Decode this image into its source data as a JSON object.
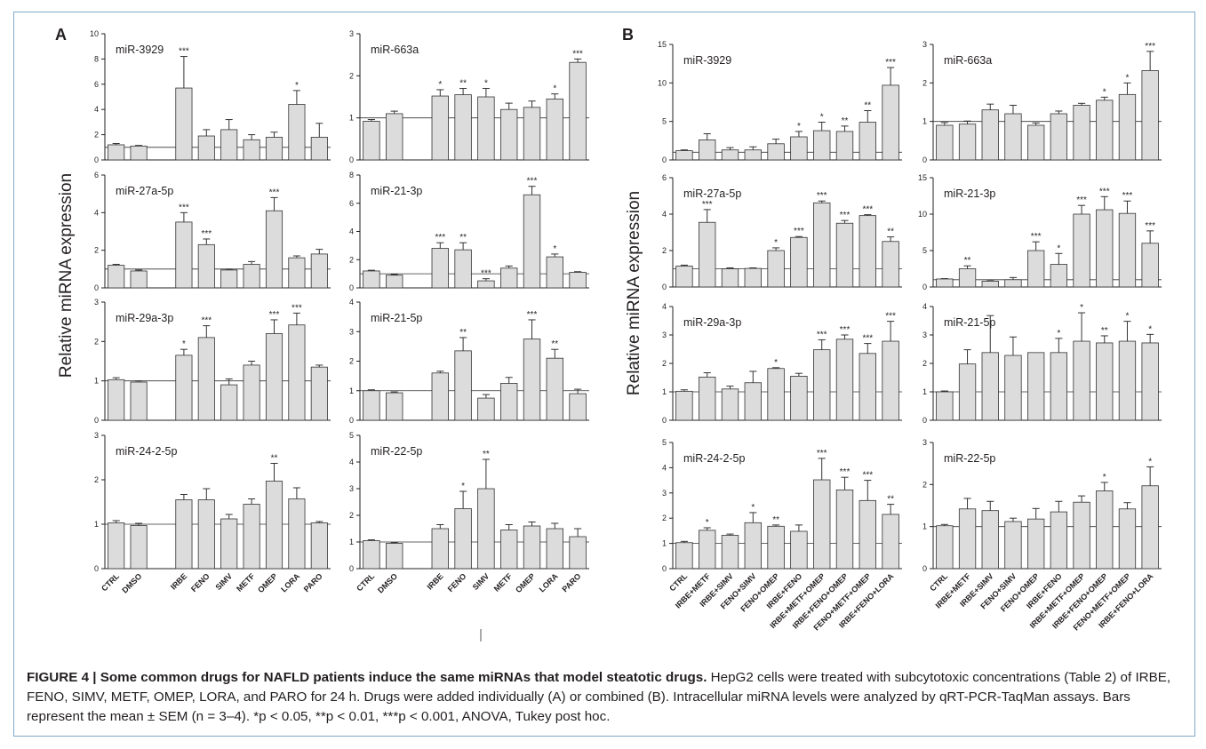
{
  "figure": {
    "ylabel": "Relative miRNA expression",
    "panel_labels": [
      "A",
      "B"
    ]
  },
  "caption": {
    "label": "FIGURE 4 | Some common drugs for NAFLD patients induce the same miRNAs that model steatotic drugs.",
    "text": "HepG2 cells were treated with subcytotoxic concentrations (Table 2) of IRBE, FENO, SIMV, METF, OMEP, LORA, and PARO for 24 h. Drugs were added individually (A) or combined (B). Intracellular miRNA levels were analyzed by qRT-PCR-TaqMan assays. Bars represent the mean ± SEM (n = 3–4). *p < 0.05, **p < 0.01, ***p < 0.001, ANOVA, Tukey post hoc."
  },
  "colors": {
    "bar_fill": "#dcdcdc",
    "bar_stroke": "#333333",
    "frame": "#7fa9c9"
  },
  "chart_data": [
    {
      "type": "bar",
      "panel": "A",
      "title": "miR-3929",
      "categories": [
        "CTRL",
        "DMSO",
        "IRBE",
        "FENO",
        "SIMV",
        "METF",
        "OMEP",
        "LORA",
        "PARO"
      ],
      "values": [
        1.2,
        1.1,
        5.7,
        1.9,
        2.4,
        1.6,
        1.8,
        4.4,
        1.8
      ],
      "errors": [
        0.1,
        0.05,
        2.5,
        0.5,
        0.8,
        0.4,
        0.4,
        1.1,
        1.1
      ],
      "significance": [
        "",
        "",
        "***",
        "",
        "",
        "",
        "",
        "*",
        ""
      ],
      "ylim": [
        0,
        10
      ],
      "yticks": [
        0,
        2,
        4,
        6,
        8,
        10
      ],
      "ref_line": 1
    },
    {
      "type": "bar",
      "panel": "A",
      "title": "miR-663a",
      "categories": [
        "CTRL",
        "DMSO",
        "IRBE",
        "FENO",
        "SIMV",
        "METF",
        "OMEP",
        "LORA",
        "PARO"
      ],
      "values": [
        0.92,
        1.1,
        1.52,
        1.55,
        1.5,
        1.2,
        1.25,
        1.45,
        2.32
      ],
      "errors": [
        0.04,
        0.06,
        0.15,
        0.15,
        0.2,
        0.15,
        0.15,
        0.12,
        0.08
      ],
      "significance": [
        "",
        "",
        "*",
        "**",
        "*",
        "",
        "",
        "*",
        "***"
      ],
      "ylim": [
        0,
        3
      ],
      "yticks": [
        0,
        1,
        2,
        3
      ],
      "ref_line": 1
    },
    {
      "type": "bar",
      "panel": "A",
      "title": "miR-27a-5p",
      "categories": [
        "CTRL",
        "DMSO",
        "IRBE",
        "FENO",
        "SIMV",
        "METF",
        "OMEP",
        "LORA",
        "PARO"
      ],
      "values": [
        1.2,
        0.9,
        3.5,
        2.3,
        0.95,
        1.25,
        4.1,
        1.6,
        1.8
      ],
      "errors": [
        0.05,
        0.05,
        0.5,
        0.3,
        0.05,
        0.15,
        0.7,
        0.1,
        0.25
      ],
      "significance": [
        "",
        "",
        "***",
        "***",
        "",
        "",
        "***",
        "",
        ""
      ],
      "ylim": [
        0,
        6
      ],
      "yticks": [
        0,
        2,
        4,
        6
      ],
      "ref_line": 1
    },
    {
      "type": "bar",
      "panel": "A",
      "title": "miR-21-3p",
      "categories": [
        "CTRL",
        "DMSO",
        "IRBE",
        "FENO",
        "SIMV",
        "METF",
        "OMEP",
        "LORA",
        "PARO"
      ],
      "values": [
        1.2,
        0.9,
        2.8,
        2.7,
        0.5,
        1.4,
        6.6,
        2.2,
        1.1
      ],
      "errors": [
        0.05,
        0.05,
        0.4,
        0.5,
        0.15,
        0.15,
        0.6,
        0.2,
        0.05
      ],
      "significance": [
        "",
        "",
        "***",
        "**",
        "***",
        "",
        "***",
        "*",
        ""
      ],
      "ylim": [
        0,
        8
      ],
      "yticks": [
        0,
        2,
        4,
        6,
        8
      ],
      "ref_line": 1
    },
    {
      "type": "bar",
      "panel": "A",
      "title": "miR-29a-3p",
      "categories": [
        "CTRL",
        "DMSO",
        "IRBE",
        "FENO",
        "SIMV",
        "METF",
        "OMEP",
        "LORA",
        "PARO"
      ],
      "values": [
        1.03,
        0.97,
        1.65,
        2.1,
        0.9,
        1.4,
        2.2,
        2.42,
        1.35
      ],
      "errors": [
        0.05,
        0.03,
        0.15,
        0.3,
        0.15,
        0.1,
        0.35,
        0.3,
        0.05
      ],
      "significance": [
        "",
        "",
        "*",
        "***",
        "",
        "",
        "***",
        "***",
        ""
      ],
      "ylim": [
        0,
        3
      ],
      "yticks": [
        0,
        1,
        2,
        3
      ],
      "ref_line": 1
    },
    {
      "type": "bar",
      "panel": "A",
      "title": "miR-21-5p",
      "categories": [
        "CTRL",
        "DMSO",
        "IRBE",
        "FENO",
        "SIMV",
        "METF",
        "OMEP",
        "LORA",
        "PARO"
      ],
      "values": [
        1.0,
        0.93,
        1.6,
        2.35,
        0.75,
        1.25,
        2.75,
        2.1,
        0.9
      ],
      "errors": [
        0.03,
        0.03,
        0.06,
        0.45,
        0.12,
        0.2,
        0.65,
        0.3,
        0.15
      ],
      "significance": [
        "",
        "",
        "",
        "**",
        "",
        "",
        "***",
        "**",
        ""
      ],
      "ylim": [
        0,
        4
      ],
      "yticks": [
        0,
        1,
        2,
        3,
        4
      ],
      "ref_line": 1
    },
    {
      "type": "bar",
      "panel": "A",
      "title": "miR-24-2-5p",
      "categories": [
        "CTRL",
        "DMSO",
        "IRBE",
        "FENO",
        "SIMV",
        "METF",
        "OMEP",
        "LORA",
        "PARO"
      ],
      "values": [
        1.03,
        0.97,
        1.55,
        1.55,
        1.12,
        1.45,
        1.97,
        1.57,
        1.03
      ],
      "errors": [
        0.05,
        0.05,
        0.12,
        0.25,
        0.1,
        0.12,
        0.4,
        0.25,
        0.03
      ],
      "significance": [
        "",
        "",
        "",
        "",
        "",
        "",
        "**",
        "",
        ""
      ],
      "ylim": [
        0,
        3
      ],
      "yticks": [
        0,
        1,
        2,
        3
      ],
      "ref_line": 1
    },
    {
      "type": "bar",
      "panel": "A",
      "title": "miR-22-5p",
      "categories": [
        "CTRL",
        "DMSO",
        "IRBE",
        "FENO",
        "SIMV",
        "METF",
        "OMEP",
        "LORA",
        "PARO"
      ],
      "values": [
        1.05,
        0.95,
        1.5,
        2.25,
        3.0,
        1.45,
        1.6,
        1.5,
        1.2
      ],
      "errors": [
        0.03,
        0.03,
        0.15,
        0.65,
        1.1,
        0.2,
        0.15,
        0.2,
        0.3
      ],
      "significance": [
        "",
        "",
        "",
        "*",
        "**",
        "",
        "",
        "",
        ""
      ],
      "ylim": [
        0,
        5
      ],
      "yticks": [
        0,
        1,
        2,
        3,
        4,
        5
      ],
      "ref_line": 1
    },
    {
      "type": "bar",
      "panel": "B",
      "title": "miR-3929",
      "categories": [
        "CTRL",
        "IRBE+METF",
        "IRBE+SIMV",
        "FENO+SIMV",
        "FENO+OMEP",
        "IRBE+FENO",
        "IRBE+METF+OMEP",
        "IRBE+FENO+OMEP",
        "FENO+METF+OMEP",
        "IRBE+FENO+LORA"
      ],
      "values": [
        1.2,
        2.6,
        1.3,
        1.3,
        2.1,
        3.0,
        3.8,
        3.7,
        4.9,
        9.7
      ],
      "errors": [
        0.1,
        0.8,
        0.3,
        0.4,
        0.6,
        0.7,
        1.1,
        0.7,
        1.5,
        2.3
      ],
      "significance": [
        "",
        "",
        "",
        "",
        "",
        "*",
        "*",
        "**",
        "**",
        "***"
      ],
      "ylim": [
        0,
        15
      ],
      "yticks": [
        0,
        5,
        10,
        15
      ],
      "ref_line": 1
    },
    {
      "type": "bar",
      "panel": "B",
      "title": "miR-663a",
      "categories": [
        "CTRL",
        "IRBE+METF",
        "IRBE+SIMV",
        "FENO+SIMV",
        "FENO+OMEP",
        "IRBE+FENO",
        "IRBE+METF+OMEP",
        "IRBE+FENO+OMEP",
        "FENO+METF+OMEP",
        "IRBE+FENO+LORA"
      ],
      "values": [
        0.9,
        0.93,
        1.3,
        1.2,
        0.9,
        1.2,
        1.42,
        1.55,
        1.7,
        2.32
      ],
      "errors": [
        0.07,
        0.08,
        0.15,
        0.22,
        0.06,
        0.07,
        0.05,
        0.08,
        0.3,
        0.5
      ],
      "significance": [
        "",
        "",
        "",
        "",
        "",
        "",
        "",
        "*",
        "*",
        "***"
      ],
      "ylim": [
        0,
        3
      ],
      "yticks": [
        0,
        1,
        2,
        3
      ],
      "ref_line": 1
    },
    {
      "type": "bar",
      "panel": "B",
      "title": "miR-27a-5p",
      "categories": [
        "CTRL",
        "IRBE+METF",
        "IRBE+SIMV",
        "FENO+SIMV",
        "FENO+OMEP",
        "IRBE+FENO",
        "IRBE+METF+OMEP",
        "IRBE+FENO+OMEP",
        "FENO+METF+OMEP",
        "IRBE+FENO+LORA"
      ],
      "values": [
        1.15,
        3.55,
        1.0,
        1.02,
        2.0,
        2.72,
        4.62,
        3.5,
        3.92,
        2.5
      ],
      "errors": [
        0.05,
        0.7,
        0.05,
        0.03,
        0.15,
        0.05,
        0.1,
        0.15,
        0.05,
        0.25
      ],
      "significance": [
        "",
        "***",
        "",
        "",
        "*",
        "***",
        "***",
        "***",
        "***",
        "**"
      ],
      "ylim": [
        0,
        6
      ],
      "yticks": [
        0,
        2,
        4,
        6
      ],
      "ref_line": 1
    },
    {
      "type": "bar",
      "panel": "B",
      "title": "miR-21-3p",
      "categories": [
        "CTRL",
        "IRBE+METF",
        "IRBE+SIMV",
        "FENO+SIMV",
        "FENO+OMEP",
        "IRBE+FENO",
        "IRBE+METF+OMEP",
        "IRBE+FENO+OMEP",
        "FENO+METF+OMEP",
        "IRBE+FENO+LORA"
      ],
      "values": [
        1.1,
        2.5,
        0.8,
        1.0,
        5.0,
        3.1,
        10.0,
        10.6,
        10.1,
        6.0
      ],
      "errors": [
        0.05,
        0.4,
        0.05,
        0.3,
        1.2,
        1.5,
        1.2,
        1.8,
        1.7,
        1.7
      ],
      "significance": [
        "",
        "**",
        "",
        "",
        "***",
        "*",
        "***",
        "***",
        "***",
        "***"
      ],
      "ylim": [
        0,
        15
      ],
      "yticks": [
        0,
        5,
        10,
        15
      ],
      "ref_line": 1
    },
    {
      "type": "bar",
      "panel": "B",
      "title": "miR-29a-3p",
      "categories": [
        "CTRL",
        "IRBE+METF",
        "IRBE+SIMV",
        "FENO+SIMV",
        "FENO+OMEP",
        "IRBE+FENO",
        "IRBE+METF+OMEP",
        "IRBE+FENO+OMEP",
        "FENO+METF+OMEP",
        "IRBE+FENO+LORA"
      ],
      "values": [
        1.02,
        1.52,
        1.1,
        1.32,
        1.82,
        1.55,
        2.48,
        2.85,
        2.35,
        2.78
      ],
      "errors": [
        0.05,
        0.15,
        0.1,
        0.4,
        0.03,
        0.1,
        0.35,
        0.15,
        0.35,
        0.7
      ],
      "significance": [
        "",
        "",
        "",
        "",
        "*",
        "",
        "***",
        "***",
        "***",
        "***"
      ],
      "ylim": [
        0,
        4
      ],
      "yticks": [
        0,
        1,
        2,
        3,
        4
      ],
      "ref_line": 1
    },
    {
      "type": "bar",
      "panel": "B",
      "title": "miR-21-5p",
      "categories": [
        "CTRL",
        "IRBE+METF",
        "IRBE+SIMV",
        "FENO+SIMV",
        "FENO+OMEP",
        "IRBE+FENO",
        "IRBE+METF+OMEP",
        "IRBE+FENO+OMEP",
        "FENO+METF+OMEP",
        "IRBE+FENO+LORA"
      ],
      "values": [
        1.0,
        1.98,
        2.38,
        2.28,
        2.38,
        2.38,
        2.78,
        2.72,
        2.78,
        2.72
      ],
      "errors": [
        0.03,
        0.5,
        1.3,
        0.65,
        0.0,
        0.5,
        1.0,
        0.25,
        0.7,
        0.3
      ],
      "significance": [
        "",
        "",
        "",
        "",
        "",
        "*",
        "*",
        "**",
        "*",
        "*"
      ],
      "ylim": [
        0,
        4
      ],
      "yticks": [
        0,
        1,
        2,
        3,
        4
      ],
      "ref_line": 1
    },
    {
      "type": "bar",
      "panel": "B",
      "title": "miR-24-2-5p",
      "categories": [
        "CTRL",
        "IRBE+METF",
        "IRBE+SIMV",
        "FENO+SIMV",
        "FENO+OMEP",
        "IRBE+FENO",
        "IRBE+METF+OMEP",
        "IRBE+FENO+OMEP",
        "FENO+METF+OMEP",
        "IRBE+FENO+LORA"
      ],
      "values": [
        1.03,
        1.52,
        1.32,
        1.82,
        1.68,
        1.48,
        3.52,
        3.12,
        2.7,
        2.15
      ],
      "errors": [
        0.05,
        0.1,
        0.05,
        0.4,
        0.05,
        0.25,
        0.85,
        0.5,
        0.8,
        0.4
      ],
      "significance": [
        "",
        "*",
        "",
        "*",
        "**",
        "",
        "***",
        "***",
        "***",
        "**"
      ],
      "ylim": [
        0,
        5
      ],
      "yticks": [
        0,
        1,
        2,
        3,
        4,
        5
      ],
      "ref_line": 1
    },
    {
      "type": "bar",
      "panel": "B",
      "title": "miR-22-5p",
      "categories": [
        "CTRL",
        "IRBE+METF",
        "IRBE+SIMV",
        "FENO+SIMV",
        "FENO+OMEP",
        "IRBE+FENO",
        "IRBE+METF+OMEP",
        "IRBE+FENO+OMEP",
        "FENO+METF+OMEP",
        "IRBE+FENO+LORA"
      ],
      "values": [
        1.02,
        1.42,
        1.38,
        1.12,
        1.18,
        1.35,
        1.58,
        1.85,
        1.42,
        1.97
      ],
      "errors": [
        0.03,
        0.25,
        0.22,
        0.08,
        0.25,
        0.25,
        0.15,
        0.2,
        0.15,
        0.45
      ],
      "significance": [
        "",
        "",
        "",
        "",
        "",
        "",
        "",
        "*",
        "",
        "*"
      ],
      "ylim": [
        0,
        3
      ],
      "yticks": [
        0,
        1,
        2,
        3
      ],
      "ref_line": 1
    }
  ]
}
